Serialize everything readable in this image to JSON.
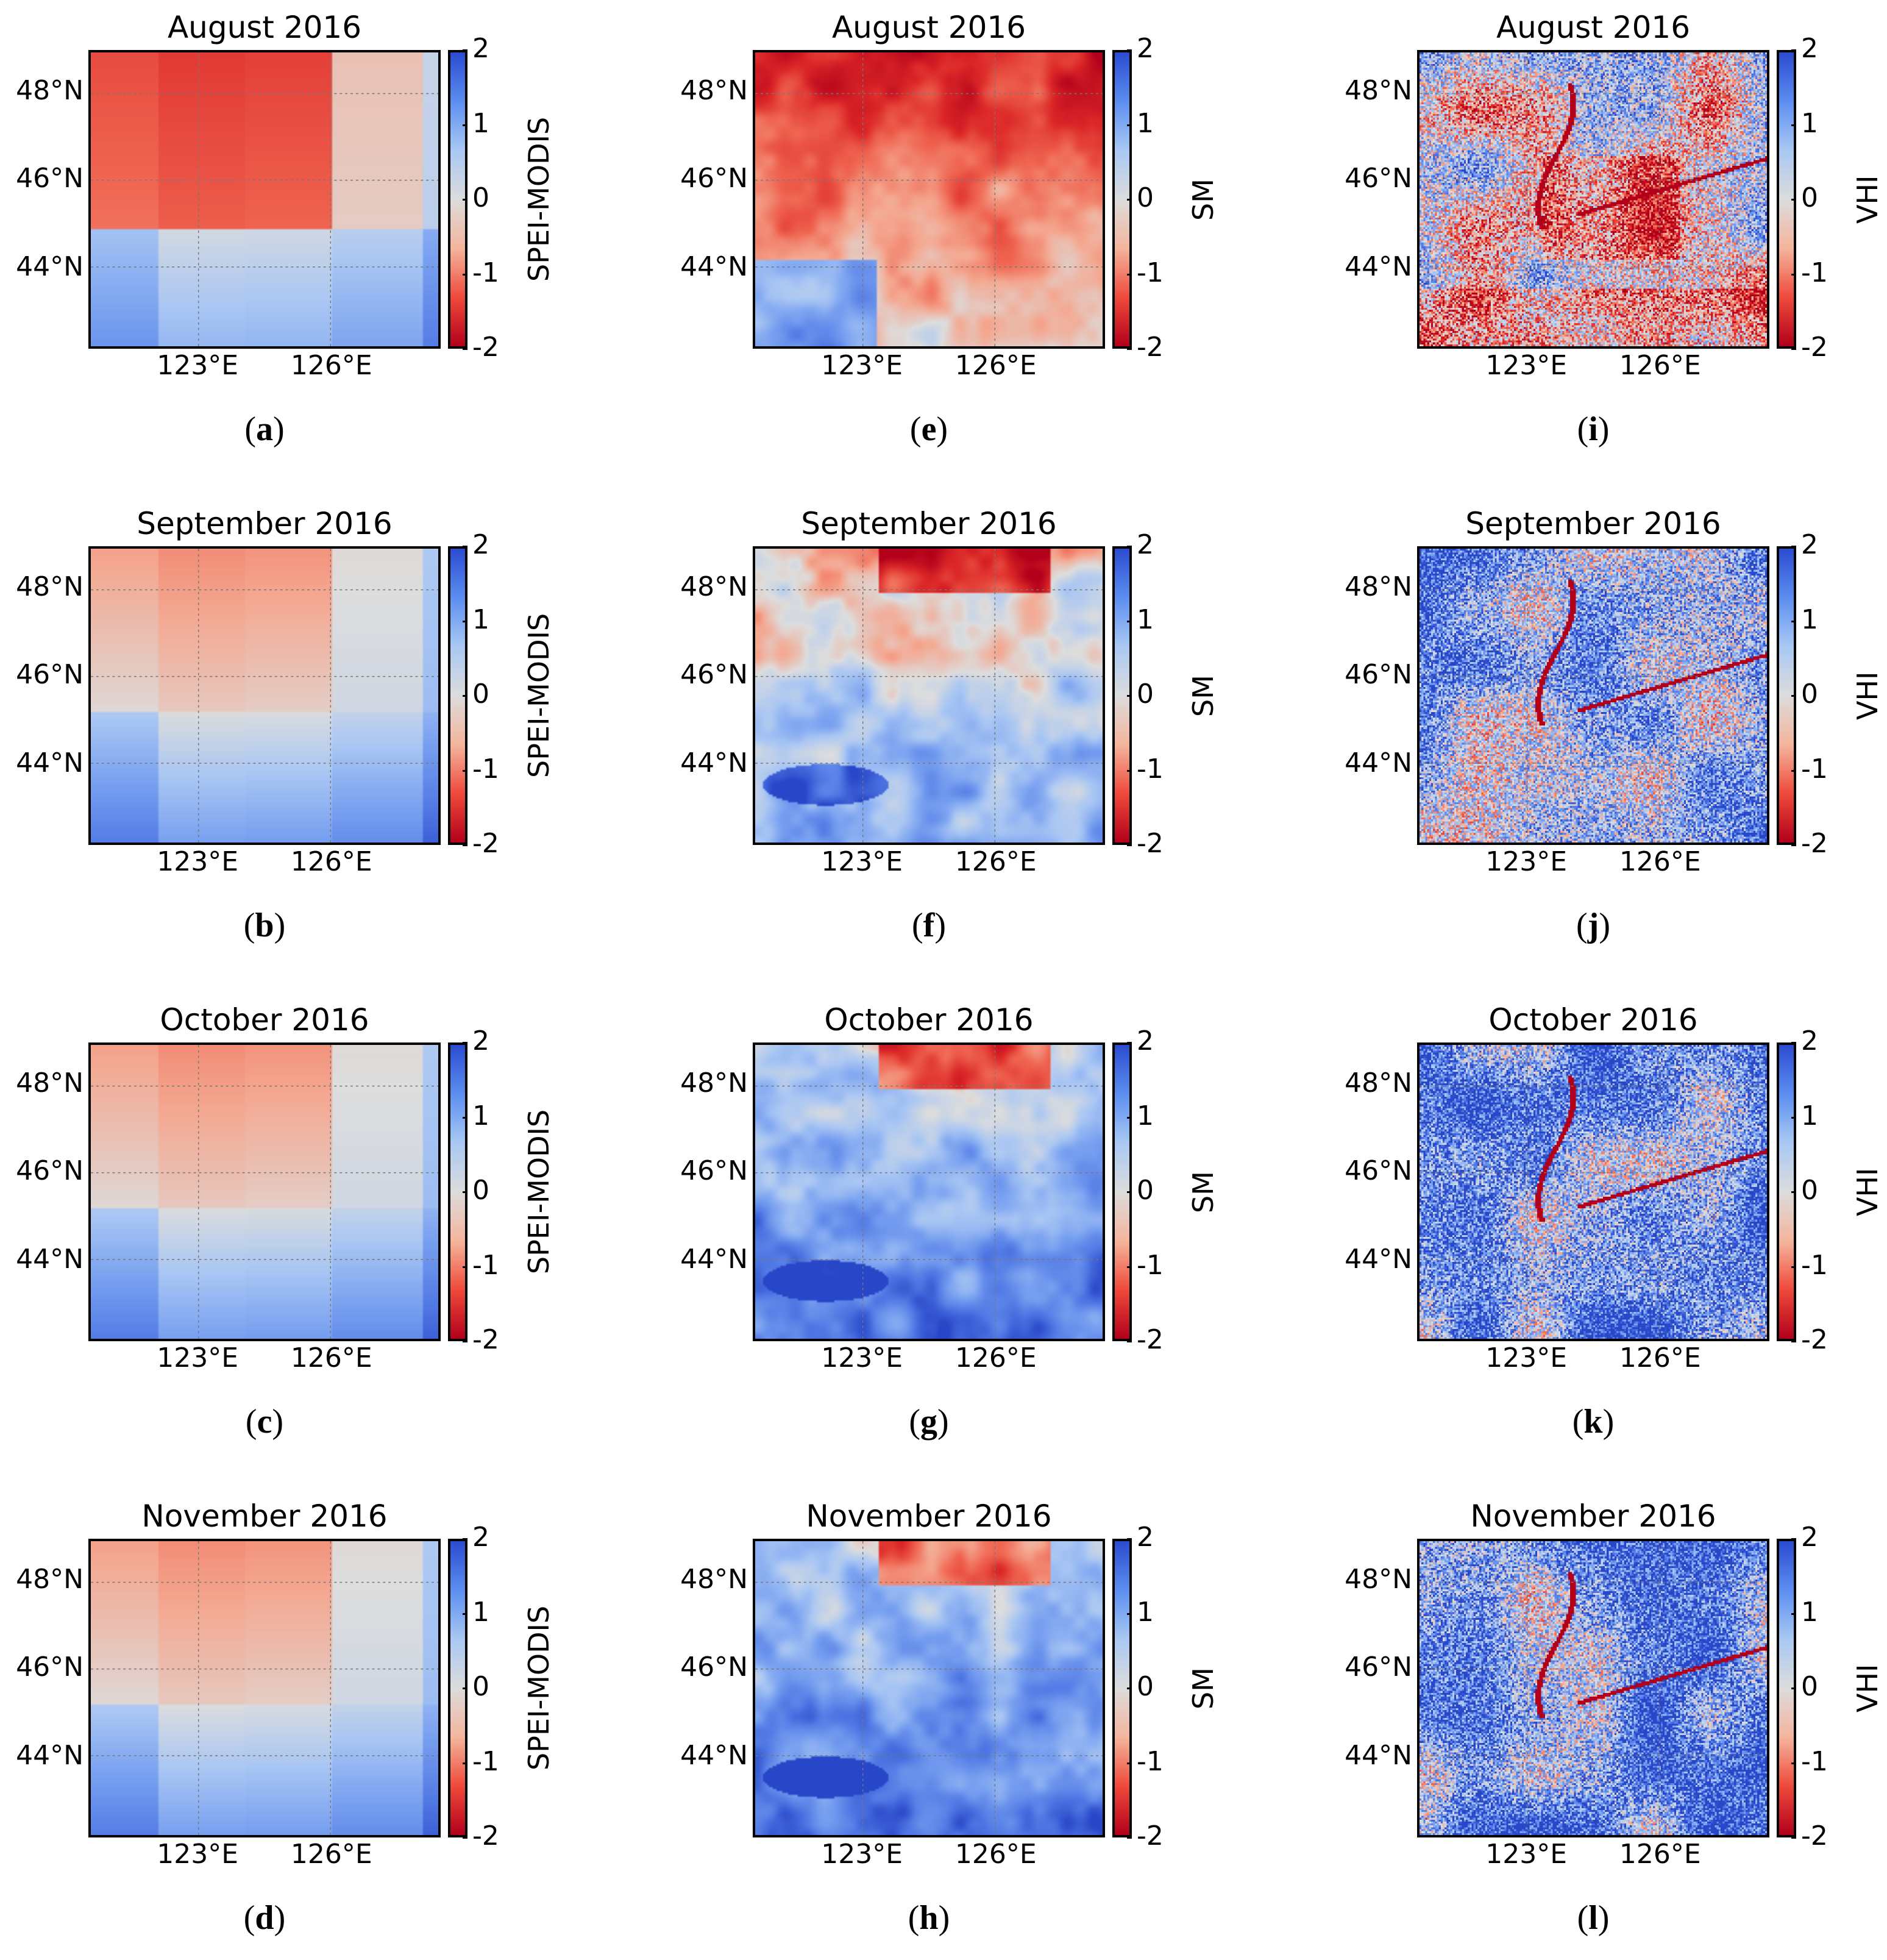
{
  "figure": {
    "colors": {
      "min": "#b2001b",
      "low": "#ef4a3b",
      "light_low": "#f4b59d",
      "mid": "#dcdcdc",
      "light_high": "#a9c8f3",
      "high": "#5b8ef0",
      "max": "#2b4bd0"
    },
    "caption_paren_open": "(",
    "caption_paren_close": ")"
  },
  "chart_data": [
    {
      "type": "heatmap",
      "id": "a",
      "caption_letter": "a",
      "title": "August 2016",
      "colorbar_label": "SPEI-MODIS",
      "colorbar_ticks": [
        "2",
        "1",
        "0",
        "-1",
        "-2"
      ],
      "clim": [
        -2,
        2
      ],
      "x_ticks": [
        "123°E",
        "126°E"
      ],
      "y_ticks": [
        "48°N",
        "46°N",
        "44°N"
      ],
      "pattern": "blocky",
      "mean_value": -0.6
    },
    {
      "type": "heatmap",
      "id": "b",
      "caption_letter": "b",
      "title": "September 2016",
      "colorbar_label": "SPEI-MODIS",
      "colorbar_ticks": [
        "2",
        "1",
        "0",
        "-1",
        "-2"
      ],
      "clim": [
        -2,
        2
      ],
      "x_ticks": [
        "123°E",
        "126°E"
      ],
      "y_ticks": [
        "48°N",
        "46°N",
        "44°N"
      ],
      "pattern": "blocky",
      "mean_value": 0.1
    },
    {
      "type": "heatmap",
      "id": "c",
      "caption_letter": "c",
      "title": "October 2016",
      "colorbar_label": "SPEI-MODIS",
      "colorbar_ticks": [
        "2",
        "1",
        "0",
        "-1",
        "-2"
      ],
      "clim": [
        -2,
        2
      ],
      "x_ticks": [
        "123°E",
        "126°E"
      ],
      "y_ticks": [
        "48°N",
        "46°N",
        "44°N"
      ],
      "pattern": "blocky",
      "mean_value": 0.15
    },
    {
      "type": "heatmap",
      "id": "d",
      "caption_letter": "d",
      "title": "November 2016",
      "colorbar_label": "SPEI-MODIS",
      "colorbar_ticks": [
        "2",
        "1",
        "0",
        "-1",
        "-2"
      ],
      "clim": [
        -2,
        2
      ],
      "x_ticks": [
        "123°E",
        "126°E"
      ],
      "y_ticks": [
        "48°N",
        "46°N",
        "44°N"
      ],
      "pattern": "blocky",
      "mean_value": 0.15
    },
    {
      "type": "heatmap",
      "id": "e",
      "caption_letter": "e",
      "title": "August 2016",
      "colorbar_label": "SM",
      "colorbar_ticks": [
        "2",
        "1",
        "0",
        "-1",
        "-2"
      ],
      "clim": [
        -2,
        2
      ],
      "x_ticks": [
        "123°E",
        "126°E"
      ],
      "y_ticks": [
        "48°N",
        "46°N",
        "44°N"
      ],
      "pattern": "smooth",
      "mean_value": -0.9
    },
    {
      "type": "heatmap",
      "id": "f",
      "caption_letter": "f",
      "title": "September 2016",
      "colorbar_label": "SM",
      "colorbar_ticks": [
        "2",
        "1",
        "0",
        "-1",
        "-2"
      ],
      "clim": [
        -2,
        2
      ],
      "x_ticks": [
        "123°E",
        "126°E"
      ],
      "y_ticks": [
        "48°N",
        "46°N",
        "44°N"
      ],
      "pattern": "smooth",
      "mean_value": 0.2
    },
    {
      "type": "heatmap",
      "id": "g",
      "caption_letter": "g",
      "title": "October 2016",
      "colorbar_label": "SM",
      "colorbar_ticks": [
        "2",
        "1",
        "0",
        "-1",
        "-2"
      ],
      "clim": [
        -2,
        2
      ],
      "x_ticks": [
        "123°E",
        "126°E"
      ],
      "y_ticks": [
        "48°N",
        "46°N",
        "44°N"
      ],
      "pattern": "smooth",
      "mean_value": 0.8
    },
    {
      "type": "heatmap",
      "id": "h",
      "caption_letter": "h",
      "title": "November 2016",
      "colorbar_label": "SM",
      "colorbar_ticks": [
        "2",
        "1",
        "0",
        "-1",
        "-2"
      ],
      "clim": [
        -2,
        2
      ],
      "x_ticks": [
        "123°E",
        "126°E"
      ],
      "y_ticks": [
        "48°N",
        "46°N",
        "44°N"
      ],
      "pattern": "smooth",
      "mean_value": 0.8
    },
    {
      "type": "heatmap",
      "id": "i",
      "caption_letter": "i",
      "title": "August 2016",
      "colorbar_label": "VHI",
      "colorbar_ticks": [
        "2",
        "1",
        "0",
        "-1",
        "-2"
      ],
      "clim": [
        -2,
        2
      ],
      "x_ticks": [
        "123°E",
        "126°E"
      ],
      "y_ticks": [
        "48°N",
        "46°N",
        "44°N"
      ],
      "pattern": "noisy",
      "mean_value": 0.0
    },
    {
      "type": "heatmap",
      "id": "j",
      "caption_letter": "j",
      "title": "September 2016",
      "colorbar_label": "VHI",
      "colorbar_ticks": [
        "2",
        "1",
        "0",
        "-1",
        "-2"
      ],
      "clim": [
        -2,
        2
      ],
      "x_ticks": [
        "123°E",
        "126°E"
      ],
      "y_ticks": [
        "48°N",
        "46°N",
        "44°N"
      ],
      "pattern": "noisy",
      "mean_value": 0.8
    },
    {
      "type": "heatmap",
      "id": "k",
      "caption_letter": "k",
      "title": "October 2016",
      "colorbar_label": "VHI",
      "colorbar_ticks": [
        "2",
        "1",
        "0",
        "-1",
        "-2"
      ],
      "clim": [
        -2,
        2
      ],
      "x_ticks": [
        "123°E",
        "126°E"
      ],
      "y_ticks": [
        "48°N",
        "46°N",
        "44°N"
      ],
      "pattern": "noisy",
      "mean_value": 1.1
    },
    {
      "type": "heatmap",
      "id": "l",
      "caption_letter": "l",
      "title": "November 2016",
      "colorbar_label": "VHI",
      "colorbar_ticks": [
        "2",
        "1",
        "0",
        "-1",
        "-2"
      ],
      "clim": [
        -2,
        2
      ],
      "x_ticks": [
        "123°E",
        "126°E"
      ],
      "y_ticks": [
        "48°N",
        "46°N",
        "44°N"
      ],
      "pattern": "noisy",
      "mean_value": 1.0
    }
  ]
}
